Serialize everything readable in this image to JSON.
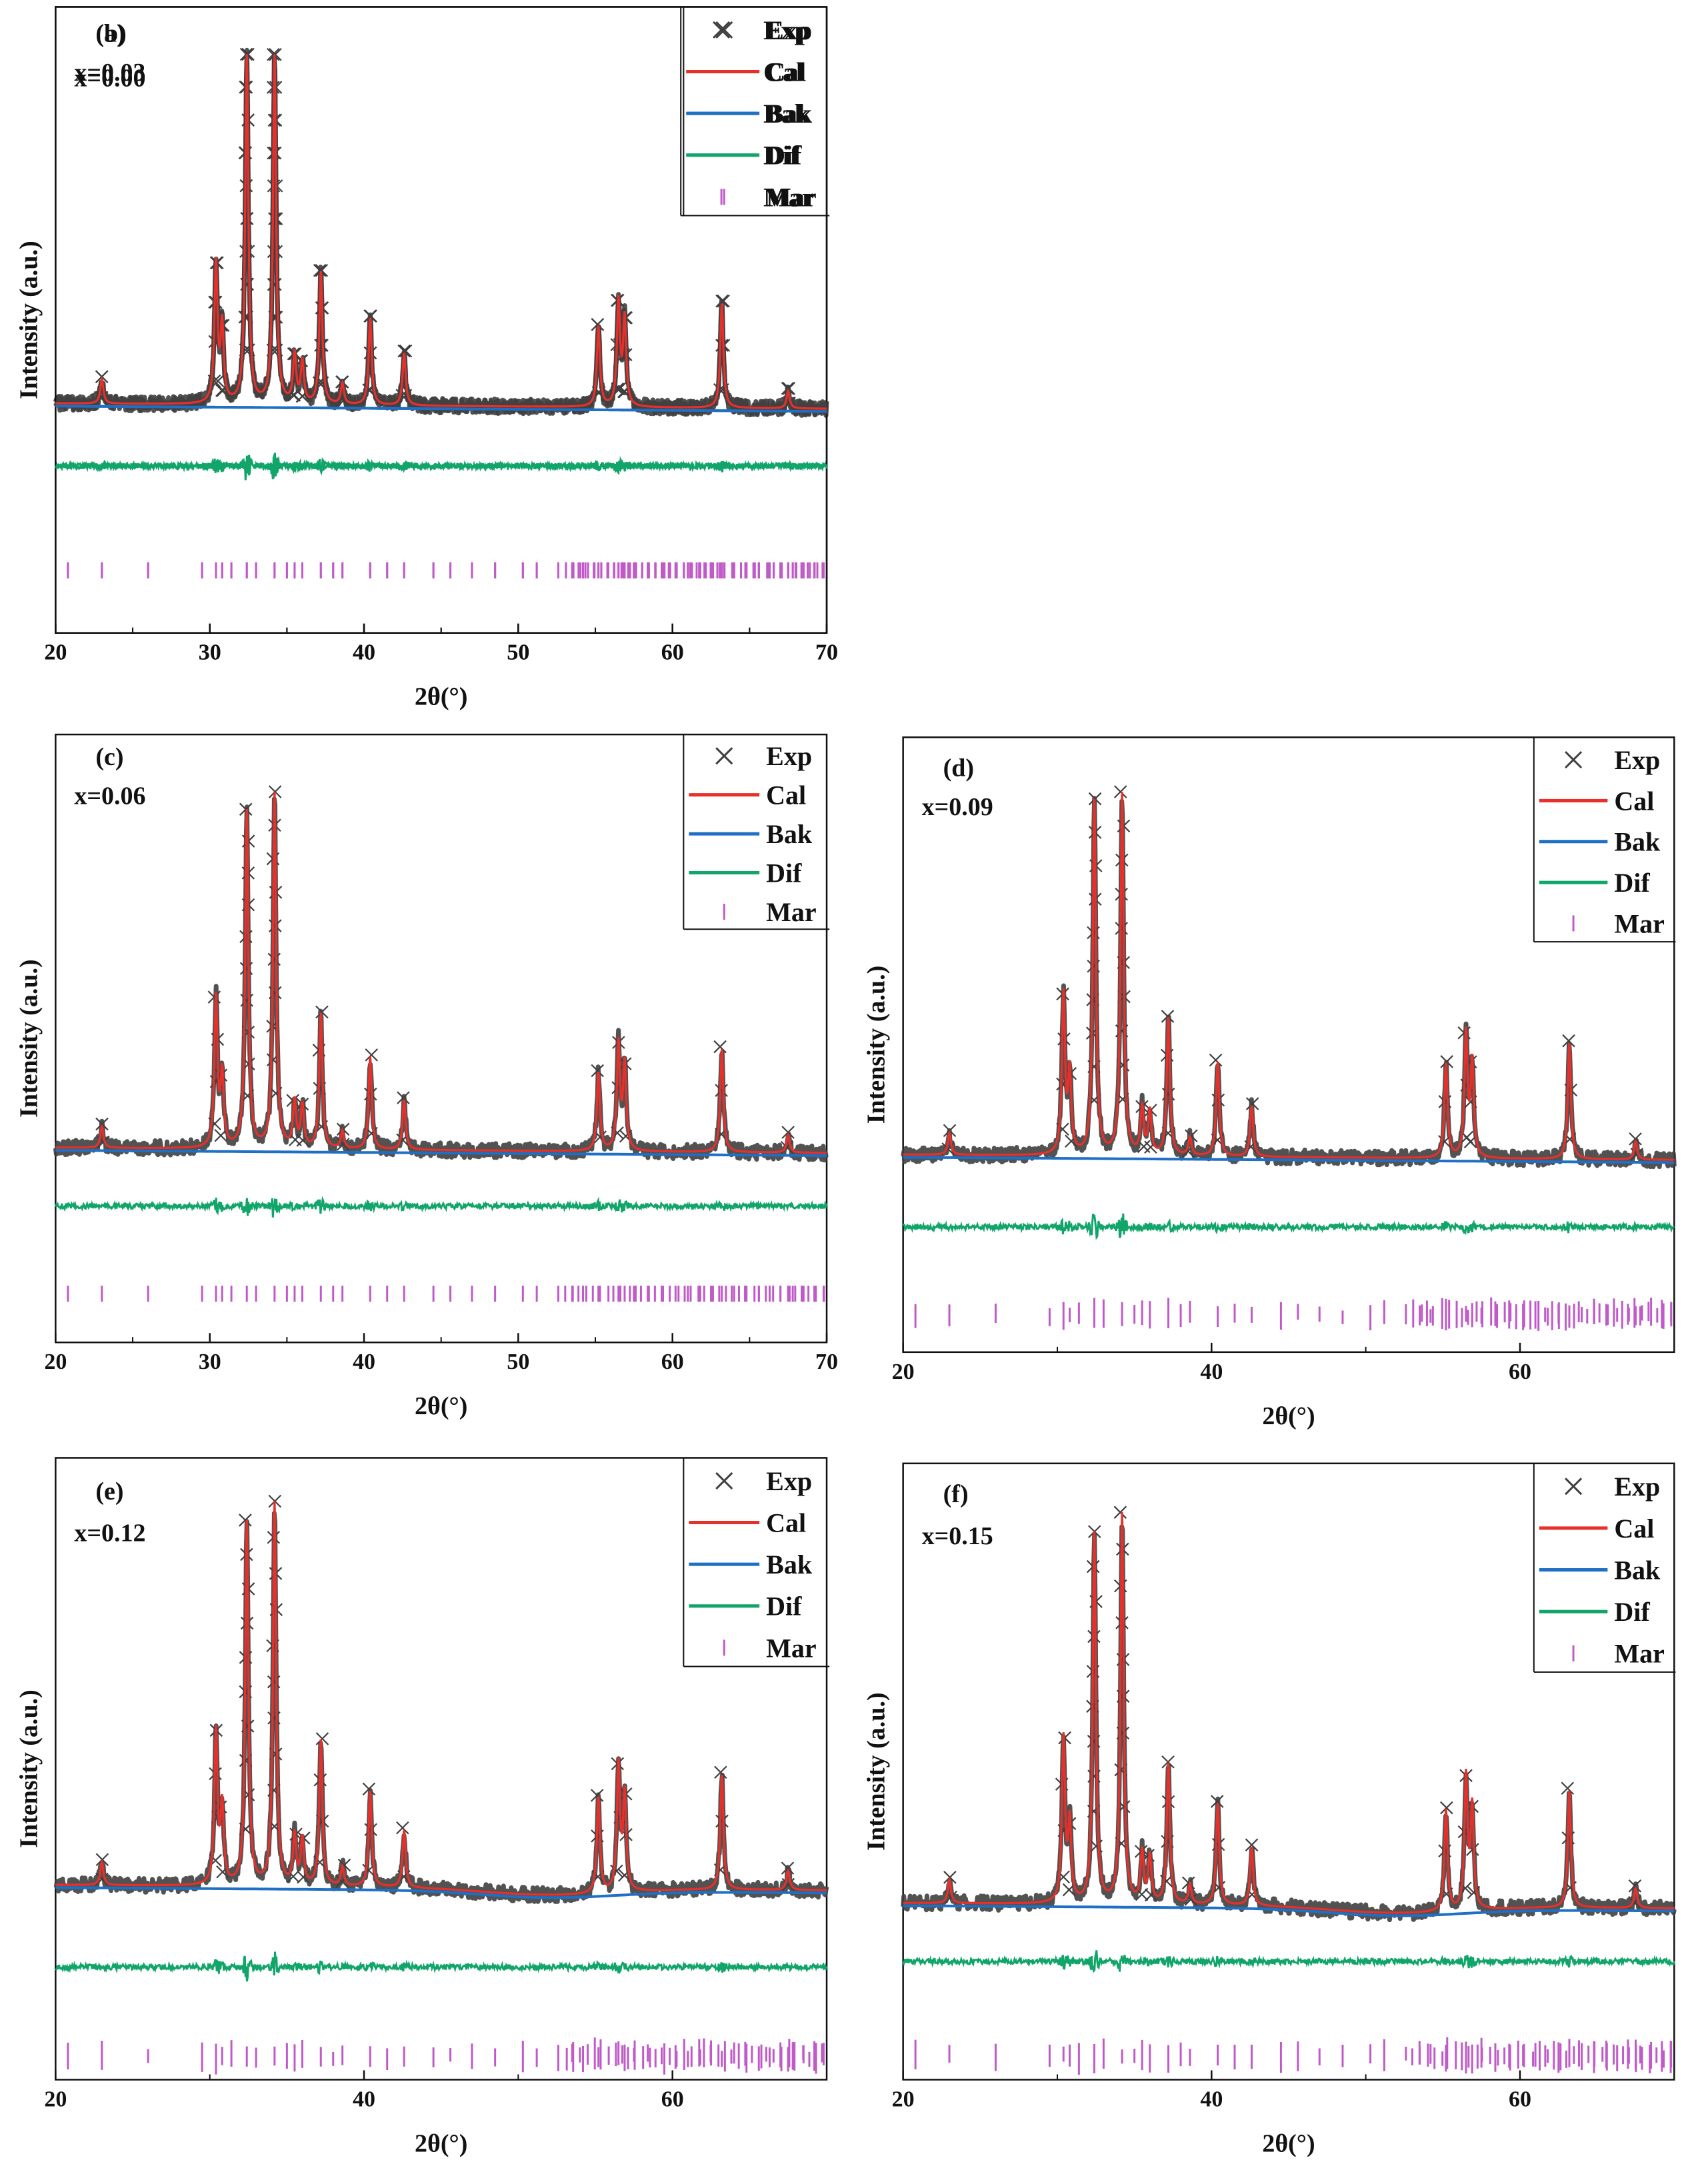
{
  "colors": {
    "exp": "#3f3f3f",
    "cal": "#e8302a",
    "bak": "#1f6fc4",
    "dif": "#12a56a",
    "mar": "#c05ac8",
    "axis": "#111111"
  },
  "chart_data": [
    {
      "type": "line",
      "panel": "(a)",
      "label": "x=0.00",
      "xlabel": "2θ(°)",
      "ylabel": "Intensity (a.u.)",
      "xlim": [
        20,
        70
      ],
      "xticks": [
        "20",
        "30",
        "40",
        "50",
        "60",
        "70"
      ],
      "legend": [
        "Exp",
        "Cal",
        "Bak",
        "Dif",
        "Mar"
      ],
      "peaks_2theta": [
        23.0,
        30.4,
        30.8,
        32.4,
        34.2,
        35.5,
        36.0,
        37.2,
        38.6,
        40.4,
        42.6,
        55.2,
        56.5,
        56.9,
        63.2,
        67.5
      ],
      "peak_intensity": [
        0.07,
        0.4,
        0.22,
        1.0,
        1.0,
        0.14,
        0.12,
        0.38,
        0.06,
        0.25,
        0.15,
        0.23,
        0.3,
        0.25,
        0.3,
        0.05
      ]
    },
    {
      "type": "line",
      "panel": "(b)",
      "label": "x=0.03",
      "xlabel": "2θ(°)",
      "ylabel": "Intensity (a.u.)",
      "xlim": [
        20,
        70
      ],
      "xticks": [
        "20",
        "30",
        "40",
        "50",
        "60",
        "70"
      ],
      "legend": [
        "Exp",
        "Cal",
        "Bak",
        "Dif",
        "Mar"
      ],
      "peaks_2theta": [
        23.0,
        30.4,
        30.8,
        32.4,
        34.2,
        35.5,
        36.0,
        37.2,
        38.6,
        40.4,
        42.6,
        55.2,
        56.5,
        56.9,
        63.2,
        67.5
      ],
      "peak_intensity": [
        0.07,
        0.4,
        0.22,
        1.0,
        1.0,
        0.14,
        0.12,
        0.38,
        0.06,
        0.25,
        0.15,
        0.23,
        0.3,
        0.25,
        0.3,
        0.05
      ]
    },
    {
      "type": "line",
      "panel": "(c)",
      "label": "x=0.06",
      "xlabel": "2θ(°)",
      "ylabel": "Intensity (a.u.)",
      "xlim": [
        20,
        70
      ],
      "xticks": [
        "20",
        "30",
        "40",
        "50",
        "60",
        "70"
      ],
      "legend": [
        "Exp",
        "Cal",
        "Bak",
        "Dif",
        "Mar"
      ],
      "peaks_2theta": [
        23.0,
        30.4,
        30.8,
        32.4,
        34.2,
        35.5,
        36.0,
        37.2,
        38.6,
        40.4,
        42.6,
        55.2,
        56.5,
        56.9,
        63.2,
        67.5
      ],
      "peak_intensity": [
        0.06,
        0.42,
        0.2,
        0.95,
        1.0,
        0.13,
        0.12,
        0.38,
        0.05,
        0.26,
        0.14,
        0.22,
        0.3,
        0.24,
        0.29,
        0.05
      ]
    },
    {
      "type": "line",
      "panel": "(d)",
      "label": "x=0.09",
      "xlabel": "2θ(°)",
      "ylabel": "Intensity (a.u.)",
      "xlim": [
        20,
        70
      ],
      "xticks": [
        "20",
        "40",
        "60"
      ],
      "legend": [
        "Exp",
        "Cal",
        "Bak",
        "Dif",
        "Mar"
      ],
      "peaks_2theta": [
        23.0,
        30.4,
        30.8,
        32.4,
        34.2,
        35.5,
        36.0,
        37.2,
        38.6,
        40.4,
        42.6,
        55.2,
        56.5,
        56.9,
        63.2,
        67.5
      ],
      "peak_intensity": [
        0.06,
        0.44,
        0.22,
        0.98,
        1.0,
        0.13,
        0.12,
        0.38,
        0.05,
        0.26,
        0.14,
        0.26,
        0.34,
        0.26,
        0.32,
        0.05
      ]
    },
    {
      "type": "line",
      "panel": "(e)",
      "label": "x=0.12",
      "xlabel": "2θ(°)",
      "ylabel": "Intensity (a.u.)",
      "xlim": [
        20,
        70
      ],
      "xticks": [
        "20",
        "40",
        "60"
      ],
      "legend": [
        "Exp",
        "Cal",
        "Bak",
        "Dif",
        "Mar"
      ],
      "peaks_2theta": [
        23.0,
        30.4,
        30.8,
        32.4,
        34.2,
        35.5,
        36.0,
        37.2,
        38.6,
        40.4,
        42.6,
        55.2,
        56.5,
        56.9,
        63.2,
        67.5
      ],
      "peak_intensity": [
        0.06,
        0.4,
        0.2,
        0.95,
        1.0,
        0.13,
        0.12,
        0.38,
        0.05,
        0.25,
        0.15,
        0.25,
        0.33,
        0.25,
        0.3,
        0.05
      ]
    },
    {
      "type": "line",
      "panel": "(f)",
      "label": "x=0.15",
      "xlabel": "2θ(°)",
      "ylabel": "Intensity (a.u.)",
      "xlim": [
        20,
        70
      ],
      "xticks": [
        "20",
        "40",
        "60"
      ],
      "legend": [
        "Exp",
        "Cal",
        "Bak",
        "Dif",
        "Mar"
      ],
      "peaks_2theta": [
        23.0,
        30.4,
        30.8,
        32.4,
        34.2,
        35.5,
        36.0,
        37.2,
        38.6,
        40.4,
        42.6,
        55.2,
        56.5,
        56.9,
        63.2,
        67.5
      ],
      "peak_intensity": [
        0.06,
        0.42,
        0.2,
        0.95,
        1.0,
        0.13,
        0.12,
        0.36,
        0.05,
        0.26,
        0.15,
        0.26,
        0.34,
        0.26,
        0.3,
        0.05
      ]
    }
  ]
}
